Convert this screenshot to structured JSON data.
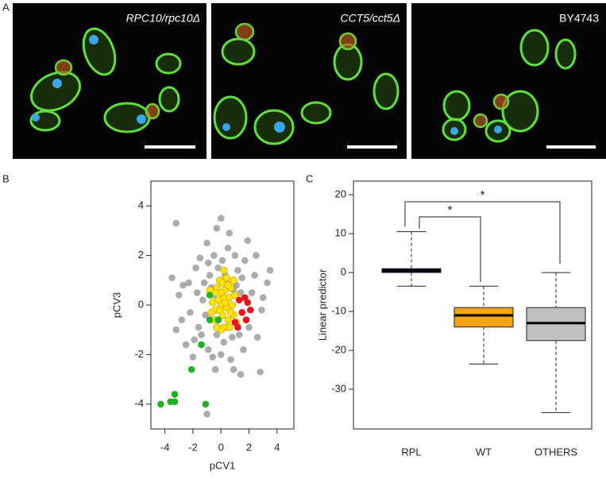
{
  "figure_a": {
    "panel_label": "A",
    "images": [
      {
        "caption": "RPC10/rpc10Δ"
      },
      {
        "caption": "CCT5/cct5Δ"
      },
      {
        "caption": "BY4743"
      }
    ]
  },
  "chart_data": [
    {
      "type": "scatter",
      "panel_label": "B",
      "xlabel": "pCV1",
      "ylabel": "pCV3",
      "xlim": [
        -5.0,
        5.2
      ],
      "ylim": [
        -5.0,
        5.0
      ],
      "xticks": [
        -4,
        -2,
        0,
        2,
        4
      ],
      "yticks": [
        -4,
        -2,
        0,
        2,
        4
      ],
      "series": [
        {
          "color": "rgba(90,90,90,0.5)",
          "x": [
            -3.2,
            0,
            -0.3,
            1.9,
            3.5,
            3.3,
            2.8,
            1.4,
            -1.0,
            -3.2,
            -3.0,
            -2.7,
            -2.2,
            -1.8,
            -1.6,
            1.0,
            -0.5,
            0.5,
            2.4,
            2.6,
            1.5,
            -1.2,
            -1.5,
            0.7,
            -0.6,
            -0.9,
            0.2,
            0.8,
            -0.2,
            0.3,
            -0.8,
            1.1,
            -1.3,
            -1.9,
            2.2,
            2.9,
            -2.5,
            -0.4,
            1.6,
            0.6,
            -1.0,
            1.3,
            -0.7,
            0.9,
            -1.1,
            1.4,
            0.5,
            -0.3,
            0.1,
            -1.7,
            2.0,
            -2.3,
            0.4,
            -0.5,
            1.2,
            -1.4,
            2.5,
            -2.0,
            0.0,
            -0.9,
            1.7,
            -3.5,
            3.0,
            -2.8,
            0.9
          ],
          "values": [
            3.3,
            3.5,
            3.1,
            2.6,
            1.4,
            0.9,
            -2.7,
            -2.8,
            -4.4,
            -1.0,
            0.4,
            0.8,
            -0.3,
            1.5,
            -0.9,
            2.0,
            2.0,
            2.3,
            1.2,
            -1.3,
            1.1,
            0.9,
            1.9,
            -2.2,
            -2.1,
            -1.8,
            -1.5,
            -1.3,
            1.5,
            1.2,
            1.2,
            0.8,
            0.2,
            -1.4,
            0.5,
            -0.2,
            -1.6,
            -2.6,
            -1.8,
            2.9,
            2.5,
            -1.2,
            0.7,
            0.6,
            -0.4,
            0.5,
            -0.9,
            -1.2,
            1.8,
            0.5,
            -0.9,
            0.9,
            0.9,
            0.4,
            1.4,
            -1.2,
            2.0,
            -2.1,
            -2.0,
            1.7,
            1.8,
            1.1,
            0.3,
            -0.6,
            -2.6
          ]
        },
        {
          "color": "#ffe400",
          "x": [
            0,
            0.2,
            -0.2,
            0.4,
            -0.4,
            0.1,
            0.3,
            -0.3,
            0.6,
            -0.6,
            0.5,
            -0.5,
            0.8,
            -0.1,
            0.2,
            0.7,
            -0.7,
            0.9,
            0.0,
            0.3,
            -0.2,
            0.6,
            0.1,
            -0.4,
            1.0,
            0.4,
            -0.1,
            0.7,
            0.2,
            0.0,
            -0.8,
            1.1,
            0.5,
            -0.3,
            0.9
          ],
          "values": [
            0,
            0.3,
            0.2,
            -0.1,
            -0.2,
            -0.4,
            0.6,
            0.7,
            0.3,
            0.1,
            -0.6,
            -0.6,
            0,
            1.0,
            -0.9,
            0.7,
            -0.3,
            -0.4,
            0.5,
            0.1,
            -0.6,
            -0.9,
            0.9,
            0.5,
            0.4,
            1.1,
            -0.2,
            -0.3,
            1.4,
            -1.0,
            0.6,
            -0.7,
            0.8,
            -0.9,
            1.0
          ]
        },
        {
          "color": "#e8141b",
          "x": [
            1.3,
            1.7,
            1.9,
            1.5,
            1.8,
            1.2,
            2.1,
            1.0
          ],
          "values": [
            0.2,
            0.3,
            0.1,
            -0.3,
            -0.6,
            -0.9,
            -0.2,
            -0.7
          ]
        },
        {
          "color": "#1fb324",
          "x": [
            -4.3,
            -3.6,
            -3.3,
            -3.3,
            -1.1,
            -2.1,
            -1.4,
            -0.8,
            -0.8,
            -0.2
          ],
          "values": [
            -4.0,
            -3.9,
            -3.9,
            -3.6,
            -4.0,
            -2.6,
            -1.6,
            -0.6,
            0.4,
            -0.6
          ]
        }
      ]
    },
    {
      "type": "box",
      "panel_label": "C",
      "ylabel": "Linear predictor",
      "ylim": [
        -40.2,
        23.5
      ],
      "yticks": [
        -30,
        -20,
        -10,
        0,
        10,
        20
      ],
      "categories": [
        "RPL",
        "WT",
        "OTHERS"
      ],
      "colors": [
        "#14146e",
        "#f5a31b",
        "#c0c0c0"
      ],
      "low": [
        -3.5,
        -23.5,
        -36
      ],
      "q1": [
        0,
        -14,
        -17.5
      ],
      "median": [
        0.5,
        -11,
        -13
      ],
      "q3": [
        1,
        -9,
        -9
      ],
      "high": [
        10.5,
        -3.5,
        0
      ],
      "significance_labels": [
        "*",
        "*"
      ]
    }
  ]
}
